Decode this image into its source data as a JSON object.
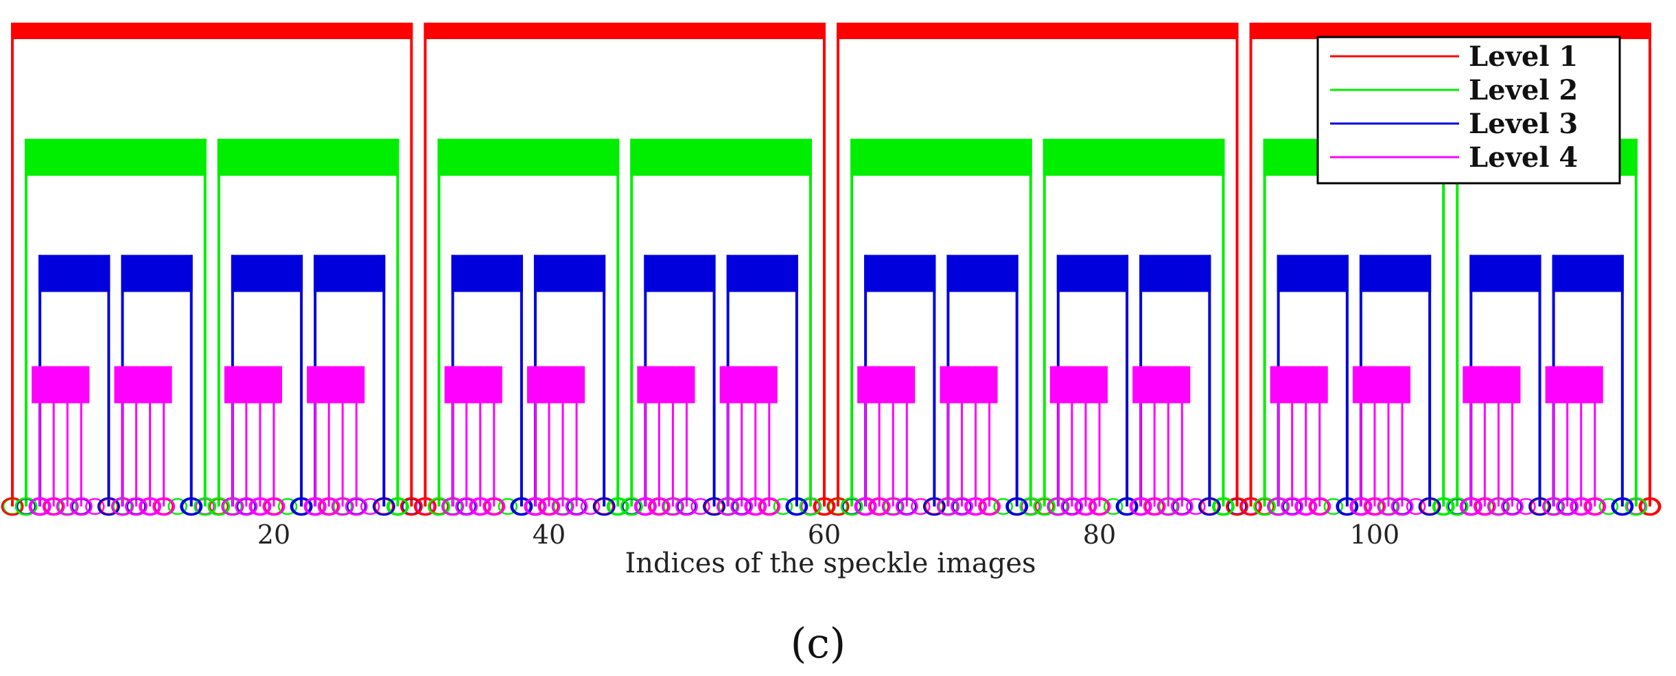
{
  "chart_data": {
    "type": "dendrogram",
    "xlabel": "Indices of the speckle images",
    "caption": "(c)",
    "xlim": [
      0,
      121
    ],
    "x_ticks": [
      20,
      40,
      60,
      80,
      100
    ],
    "n_leaves": 120,
    "levels": [
      {
        "name": "Level 1",
        "color": "#ff0000",
        "height": 1.0,
        "groups": [
          [
            1,
            30
          ],
          [
            31,
            60
          ],
          [
            61,
            90
          ],
          [
            91,
            120
          ]
        ]
      },
      {
        "name": "Level 2",
        "color": "#00ee00",
        "height": 0.76,
        "groups": [
          [
            2,
            15
          ],
          [
            16,
            29
          ],
          [
            32,
            45
          ],
          [
            46,
            59
          ],
          [
            62,
            75
          ],
          [
            76,
            89
          ],
          [
            92,
            105
          ],
          [
            106,
            119
          ]
        ]
      },
      {
        "name": "Level 3",
        "color": "#0000dd",
        "height": 0.52,
        "groups": [
          [
            3,
            8
          ],
          [
            9,
            14
          ],
          [
            17,
            22
          ],
          [
            23,
            28
          ],
          [
            33,
            38
          ],
          [
            39,
            44
          ],
          [
            47,
            52
          ],
          [
            53,
            58
          ],
          [
            63,
            68
          ],
          [
            69,
            74
          ],
          [
            77,
            82
          ],
          [
            83,
            88
          ],
          [
            93,
            98
          ],
          [
            99,
            104
          ],
          [
            107,
            112
          ],
          [
            113,
            118
          ]
        ]
      },
      {
        "name": "Level 4",
        "color": "#ff00ff",
        "height": 0.29,
        "groups": [
          [
            3,
            4
          ],
          [
            5,
            6
          ],
          [
            9,
            10
          ],
          [
            11,
            12
          ],
          [
            17,
            18
          ],
          [
            19,
            20
          ],
          [
            23,
            24
          ],
          [
            25,
            26
          ],
          [
            33,
            34
          ],
          [
            35,
            36
          ],
          [
            39,
            40
          ],
          [
            41,
            42
          ],
          [
            47,
            48
          ],
          [
            49,
            50
          ],
          [
            53,
            54
          ],
          [
            55,
            56
          ],
          [
            63,
            64
          ],
          [
            65,
            66
          ],
          [
            69,
            70
          ],
          [
            71,
            72
          ],
          [
            77,
            78
          ],
          [
            79,
            80
          ],
          [
            83,
            84
          ],
          [
            85,
            86
          ],
          [
            93,
            94
          ],
          [
            95,
            96
          ],
          [
            99,
            100
          ],
          [
            101,
            102
          ],
          [
            107,
            108
          ],
          [
            109,
            110
          ],
          [
            113,
            114
          ],
          [
            115,
            116
          ]
        ]
      }
    ],
    "legend": {
      "position": "top-right",
      "entries": [
        "Level 1",
        "Level 2",
        "Level 3",
        "Level 4"
      ]
    }
  }
}
